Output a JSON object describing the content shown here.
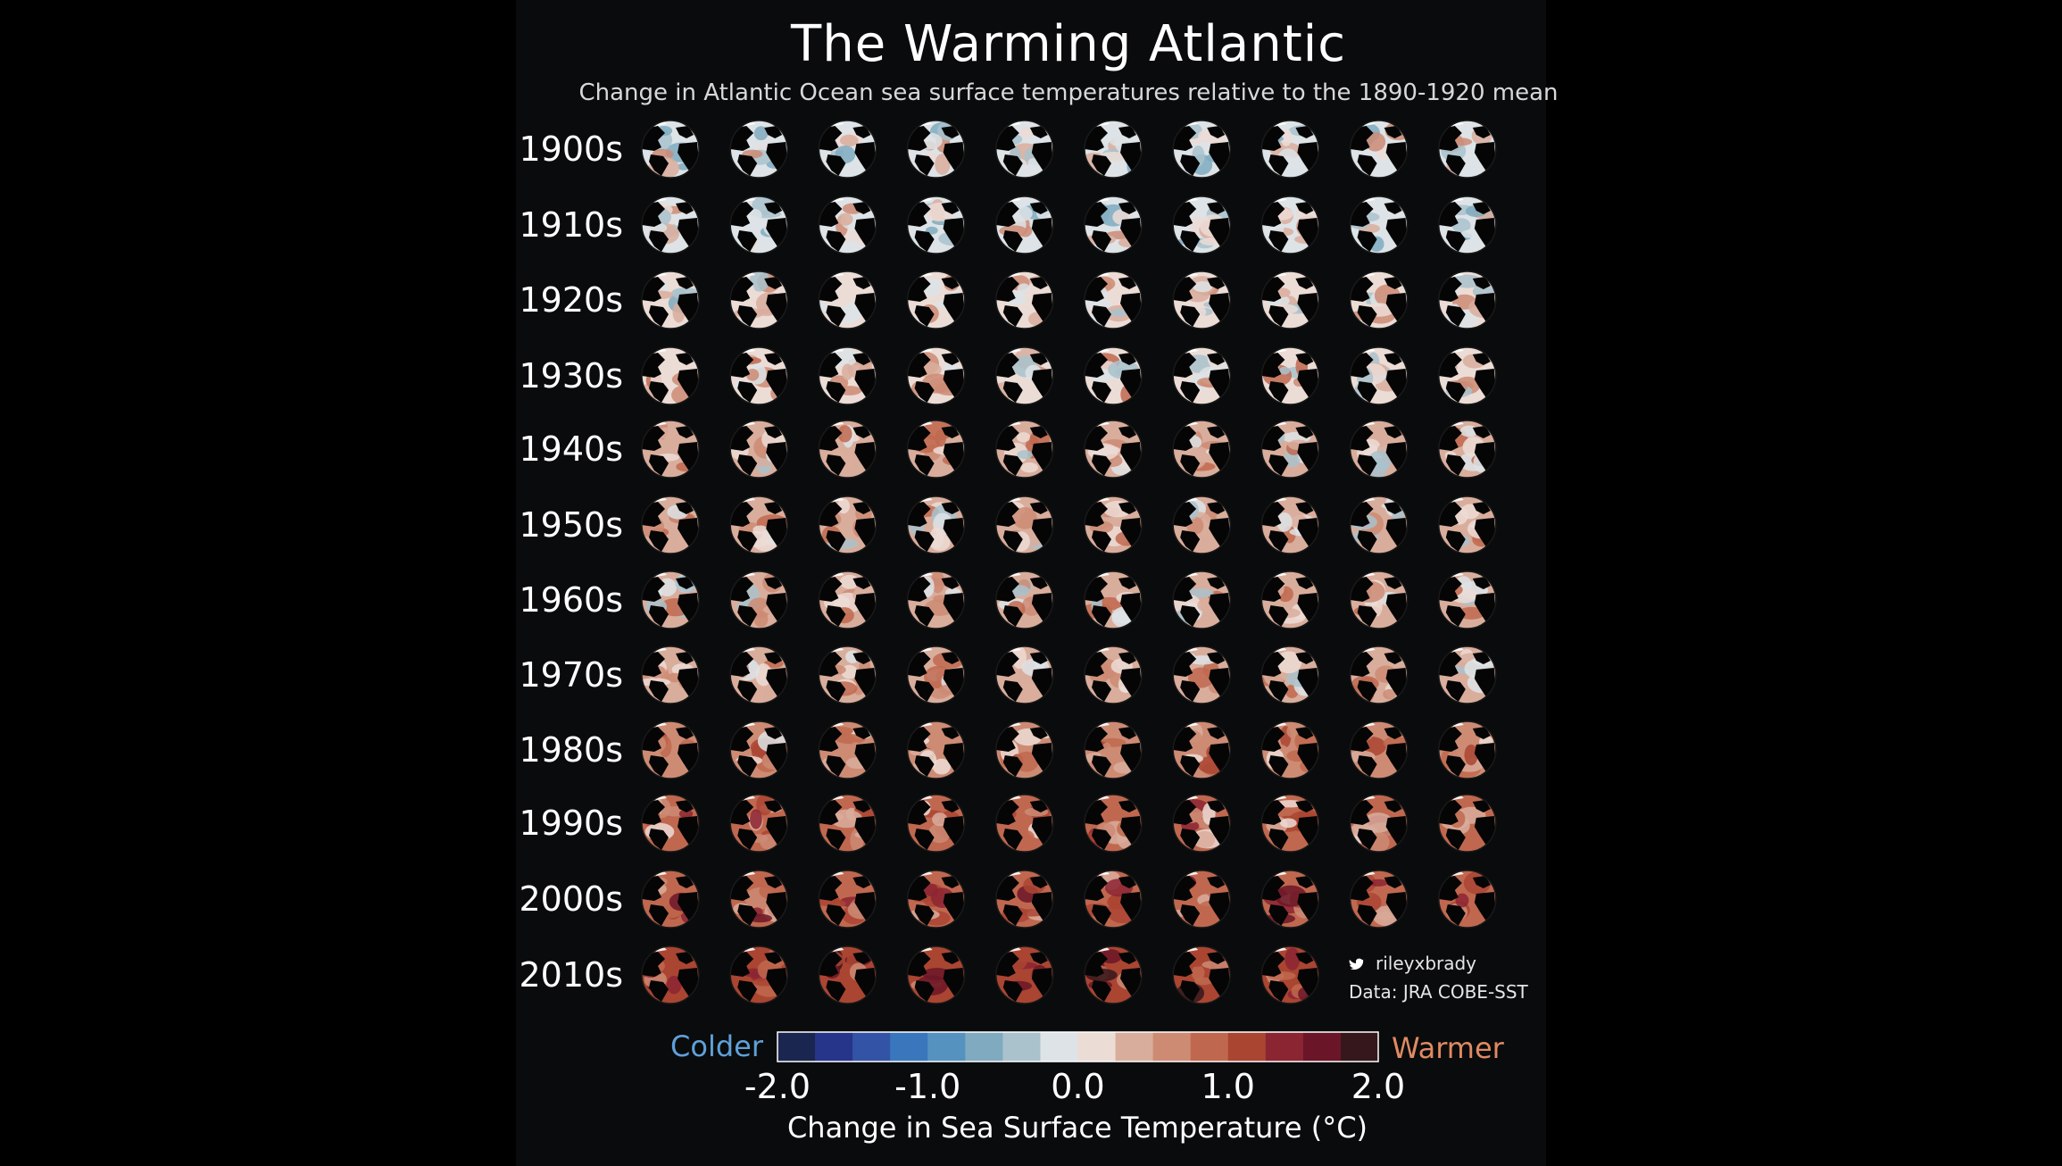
{
  "chart_data": {
    "type": "heatmap",
    "title": "The Warming Atlantic",
    "subtitle": "Change in Atlantic Ocean sea surface temperatures relative to the 1890-1920 mean",
    "row_labels": [
      "1900s",
      "1910s",
      "1920s",
      "1930s",
      "1940s",
      "1950s",
      "1960s",
      "1970s",
      "1980s",
      "1990s",
      "2000s",
      "2010s"
    ],
    "years_per_row": 10,
    "years_in_last_row": 8,
    "row_mean_anomaly_c": [
      -0.05,
      -0.05,
      0.1,
      0.2,
      0.3,
      0.25,
      0.25,
      0.35,
      0.6,
      0.75,
      0.95,
      1.2
    ],
    "colorbar": {
      "min": -2.0,
      "max": 2.0,
      "ticks": [
        "-2.0",
        "-1.0",
        "0.0",
        "1.0",
        "2.0"
      ],
      "label": "Change in Sea Surface Temperature (°C)",
      "low_label": "Colder",
      "high_label": "Warmer",
      "colors": [
        "#1b2650",
        "#26358a",
        "#3354a6",
        "#3a76bb",
        "#5592bf",
        "#7faac0",
        "#a9c2cc",
        "#dde3e6",
        "#ecdcd6",
        "#d9ad9c",
        "#cd8b74",
        "#c0684f",
        "#aa4532",
        "#8c2532",
        "#6b1628",
        "#36181c"
      ]
    },
    "colder_color": "#5fa0d8",
    "warmer_color": "#e08a62"
  },
  "credits": {
    "twitter_handle": "rileyxbrady",
    "data_source": "Data: JRA COBE-SST",
    "twitter_icon": "twitter-bird-icon"
  }
}
